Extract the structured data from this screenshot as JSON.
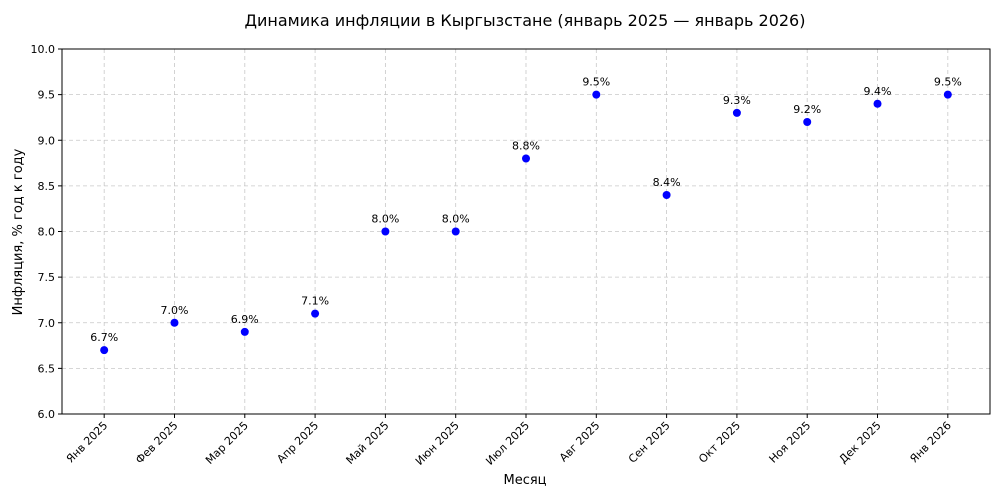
{
  "chart_data": {
    "type": "line",
    "title": "Динамика инфляции в Кыргызстане (январь 2025 — январь 2026)",
    "x_label": "Месяц",
    "y_label": "Инфляция, % год к году",
    "categories": [
      "Янв 2025",
      "Фев 2025",
      "Мар 2025",
      "Апр 2025",
      "Май 2025",
      "Июн 2025",
      "Июл 2025",
      "Авг 2025",
      "Сен 2025",
      "Окт 2025",
      "Ноя 2025",
      "Дек 2025",
      "Янв 2026"
    ],
    "series": [
      {
        "color": "#0000ff",
        "values": [
          6.7,
          7.0,
          6.9,
          7.1,
          8.0,
          8.0,
          8.8,
          9.5,
          8.4,
          9.3,
          9.2,
          9.4,
          9.5
        ],
        "value_labels": [
          "6.7%",
          "7.0%",
          "6.9%",
          "7.1%",
          "8.0%",
          "8.0%",
          "8.8%",
          "9.5%",
          "8.4%",
          "9.3%",
          "9.2%",
          "9.4%",
          "9.5%"
        ]
      }
    ],
    "ylim": [
      6,
      10
    ],
    "yticks": [
      {
        "value": 6,
        "label": "6.0"
      },
      6.5,
      {
        "value": 7,
        "label": "7.0"
      },
      7.5,
      {
        "value": 8,
        "label": "8.0"
      },
      8.5,
      {
        "value": 9,
        "label": "9.0"
      },
      9.5,
      {
        "value": 10,
        "label": "10.0"
      }
    ],
    "grid": true
  }
}
